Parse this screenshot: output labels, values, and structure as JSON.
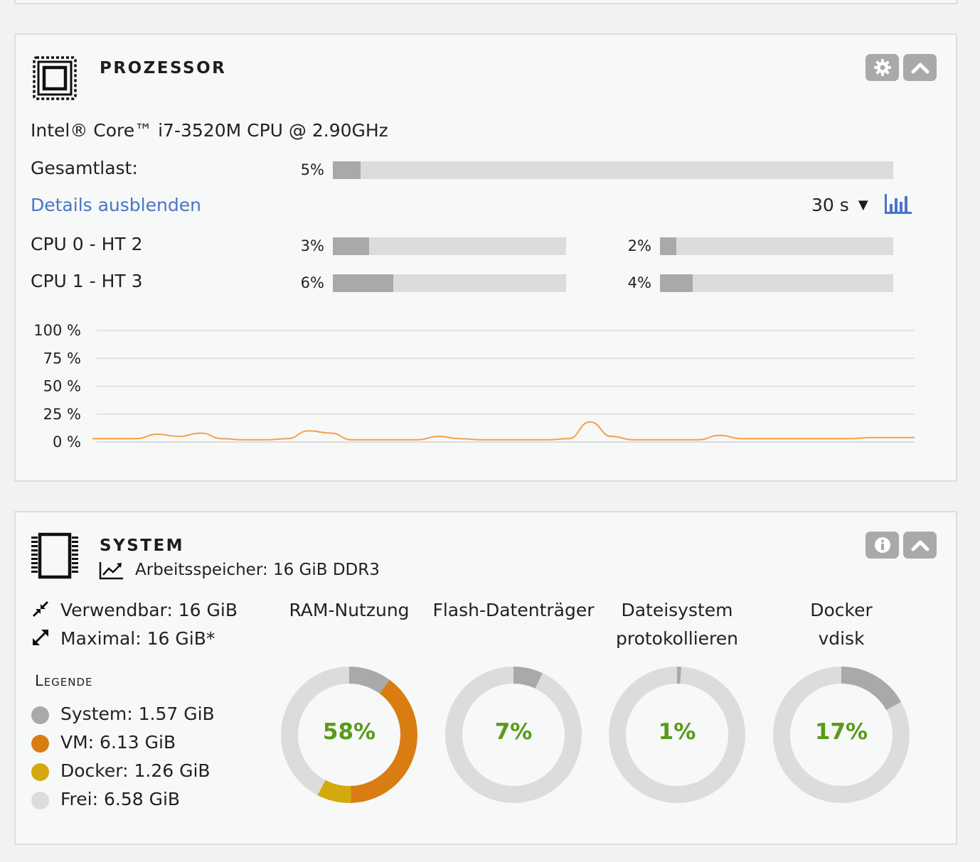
{
  "colors": {
    "bar_bg": "#dcdcdc",
    "bar_fill": "#a9a9a9",
    "link": "#4a74c9",
    "chart_line": "#f5a04a",
    "gauge_text": "#5a9a1a",
    "system": "#a9a9a9",
    "vm": "#d97d12",
    "docker": "#d4a90e",
    "free": "#dcdcdc"
  },
  "processor": {
    "icon": "cpu-chip-icon",
    "title": "PROZESSOR",
    "model": "Intel® Core™ i7-3520M CPU @ 2.90GHz",
    "total_label": "Gesamtlast:",
    "total_pct_text": "5%",
    "total_value": 5,
    "details_link": "Details ausblenden",
    "interval": "30 s",
    "interval_caret": "▼",
    "cores": [
      {
        "label": "CPU 0 - HT 2",
        "a_text": "3%",
        "a": 3,
        "b_text": "2%",
        "b": 2
      },
      {
        "label": "CPU 1 - HT 3",
        "a_text": "6%",
        "a": 6,
        "b_text": "4%",
        "b": 4
      }
    ],
    "buttons": [
      "gear-icon",
      "chevron-up-icon"
    ]
  },
  "chart_data": {
    "type": "line",
    "title": "",
    "xlabel": "",
    "ylabel": "",
    "y_ticks": [
      "100 %",
      "75 %",
      "50 %",
      "25 %",
      "0 %"
    ],
    "ylim": [
      0,
      100
    ],
    "grid": true,
    "series": [
      {
        "values": [
          3,
          3,
          3,
          7,
          5,
          8,
          3,
          2,
          2,
          3,
          10,
          8,
          2,
          2,
          2,
          2,
          5,
          3,
          2,
          2,
          2,
          2,
          3,
          18,
          5,
          2,
          2,
          2,
          2,
          6,
          3,
          3,
          3,
          3,
          3,
          3,
          4,
          4,
          4
        ]
      }
    ]
  },
  "system": {
    "icon": "memory-module-icon",
    "title": "SYSTEM",
    "ram_icon": "trend-chart-icon",
    "ram_text": "Arbeitsspeicher: 16 GiB DDR3",
    "usable": "Verwendbar: 16 GiB",
    "maximum": "Maximal: 16 GiB*",
    "legend_title": "Legende",
    "legend": [
      {
        "label": "System: 1.57 GiB",
        "color": "#a9a9a9"
      },
      {
        "label": "VM: 6.13 GiB",
        "color": "#d97d12"
      },
      {
        "label": "Docker: 1.26 GiB",
        "color": "#d4a90e"
      },
      {
        "label": "Frei: 6.58 GiB",
        "color": "#dcdcdc"
      }
    ],
    "buttons": [
      "info-icon",
      "chevron-up-icon"
    ],
    "gauges": [
      {
        "label1": "RAM-Nutzung",
        "label2": "",
        "pct": "58%",
        "segments": [
          {
            "value": 1.57,
            "color": "#a9a9a9"
          },
          {
            "value": 6.13,
            "color": "#d97d12"
          },
          {
            "value": 1.26,
            "color": "#d4a90e"
          },
          {
            "value": 6.58,
            "color": "#dcdcdc"
          }
        ]
      },
      {
        "label1": "Flash-Datenträger",
        "label2": "",
        "pct": "7%",
        "segments": [
          {
            "value": 7,
            "color": "#a9a9a9"
          },
          {
            "value": 93,
            "color": "#dcdcdc"
          }
        ]
      },
      {
        "label1": "Dateisystem",
        "label2": "protokollieren",
        "pct": "1%",
        "segments": [
          {
            "value": 1,
            "color": "#a9a9a9"
          },
          {
            "value": 99,
            "color": "#dcdcdc"
          }
        ]
      },
      {
        "label1": "Docker",
        "label2": "vdisk",
        "pct": "17%",
        "segments": [
          {
            "value": 17,
            "color": "#a9a9a9"
          },
          {
            "value": 83,
            "color": "#dcdcdc"
          }
        ]
      }
    ]
  }
}
